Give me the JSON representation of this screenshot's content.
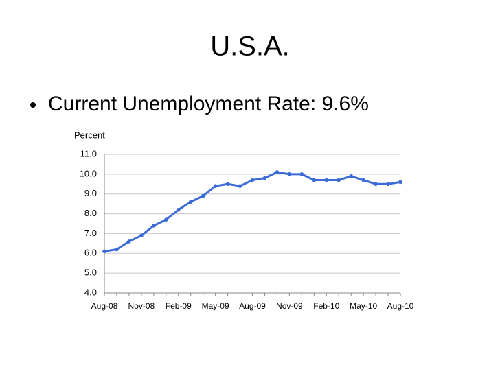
{
  "slide": {
    "title": "U.S.A.",
    "bullets": [
      "Current Unemployment Rate: 9.6%"
    ]
  },
  "chart_data": {
    "type": "line",
    "y_axis_label": "Percent",
    "categories": [
      "Aug-08",
      null,
      null,
      "Nov-08",
      null,
      null,
      "Feb-09",
      null,
      null,
      "May-09",
      null,
      null,
      "Aug-09",
      null,
      null,
      "Nov-09",
      null,
      null,
      "Feb-10",
      null,
      null,
      "May-10",
      null,
      null,
      "Aug-10"
    ],
    "series": [
      {
        "name": "Unemployment rate",
        "color": "#3d6bd6",
        "values": [
          6.1,
          6.2,
          6.6,
          6.9,
          7.4,
          7.7,
          8.2,
          8.6,
          8.9,
          9.4,
          9.5,
          9.4,
          9.7,
          9.8,
          10.1,
          10.0,
          10.0,
          9.7,
          9.7,
          9.7,
          9.9,
          9.7,
          9.5,
          9.5,
          9.6
        ]
      }
    ],
    "ylim": [
      4,
      11
    ],
    "yticks": [
      {
        "value": 4,
        "label": "4.0"
      },
      {
        "value": 5,
        "label": "5.0"
      },
      {
        "value": 6,
        "label": "6.0"
      },
      {
        "value": 7,
        "label": "7.0"
      },
      {
        "value": 8,
        "label": "8.0"
      },
      {
        "value": 9,
        "label": "9.0"
      },
      {
        "value": 10,
        "label": "10.0"
      },
      {
        "value": 11,
        "label": "11.0"
      }
    ],
    "grid": true
  }
}
